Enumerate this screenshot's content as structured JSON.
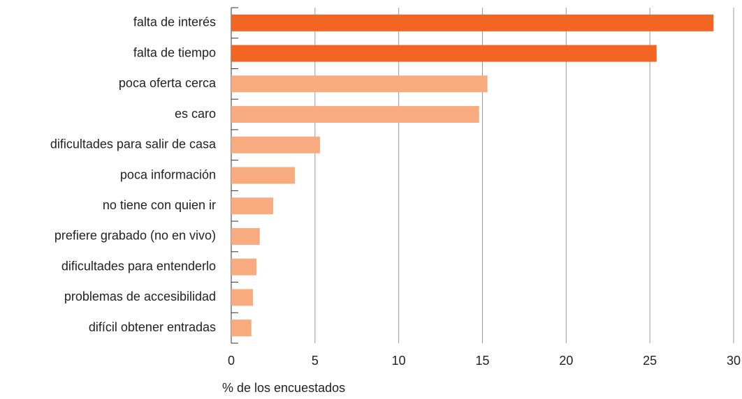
{
  "chart_data": {
    "type": "bar",
    "orientation": "horizontal",
    "x_label": "% de los encuestados",
    "categories": [
      "falta de interés",
      "falta de tiempo",
      "poca oferta cerca",
      "es caro",
      "dificultades para salir de casa",
      "poca información",
      "no tiene con quien ir",
      "prefiere grabado (no en vivo)",
      "dificultades para entenderlo",
      "problemas de accesibilidad",
      "difícil obtener entradas"
    ],
    "values": [
      28.8,
      25.4,
      15.3,
      14.8,
      5.3,
      3.8,
      2.5,
      1.7,
      1.5,
      1.3,
      1.2
    ],
    "colors": [
      "#f26522",
      "#f26522",
      "#f7ab7f",
      "#f7ab7f",
      "#f7ab7f",
      "#f7ab7f",
      "#f7ab7f",
      "#f7ab7f",
      "#f7ab7f",
      "#f7ab7f",
      "#f7ab7f"
    ],
    "xlim": [
      0,
      30
    ],
    "xticks": [
      0,
      5,
      10,
      15,
      20,
      25,
      30
    ],
    "grid": true
  }
}
